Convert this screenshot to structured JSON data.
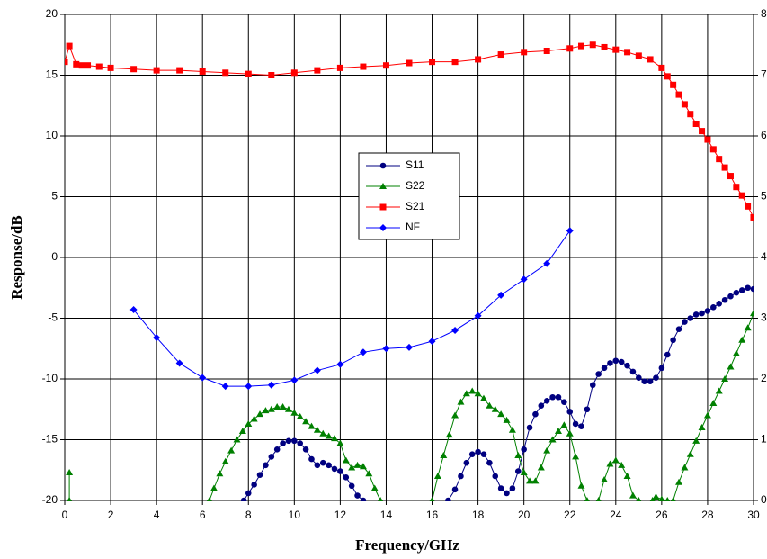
{
  "chart_data": {
    "type": "line",
    "x_label": "Frequency/GHz",
    "y_label": "Response/dB",
    "xlim": [
      0,
      30
    ],
    "xticks": [
      0,
      2,
      4,
      6,
      8,
      10,
      12,
      14,
      16,
      18,
      20,
      22,
      24,
      26,
      28,
      30
    ],
    "ylim": [
      -20,
      20
    ],
    "yticks": [
      -20,
      -15,
      -10,
      -5,
      0,
      5,
      10,
      15,
      20
    ],
    "y2lim": [
      0,
      8
    ],
    "y2ticks": [
      0,
      1,
      2,
      3,
      4,
      5,
      6,
      7,
      8
    ],
    "grid": true,
    "legend": "center",
    "series": [
      {
        "name": "S11",
        "color": "#000080",
        "marker": "circle",
        "x": [
          7.8,
          8,
          8.25,
          8.5,
          8.75,
          9,
          9.25,
          9.5,
          9.75,
          10,
          10.25,
          10.5,
          10.75,
          11,
          11.25,
          11.5,
          11.75,
          12,
          12.25,
          12.5,
          12.75,
          13,
          15,
          16.7,
          17,
          17.25,
          17.5,
          17.75,
          18,
          18.25,
          18.5,
          18.75,
          19,
          19.25,
          19.5,
          19.75,
          20,
          20.25,
          20.5,
          20.75,
          21,
          21.25,
          21.5,
          21.75,
          22,
          22.25,
          22.5,
          22.75,
          23,
          23.25,
          23.5,
          23.75,
          24,
          24.25,
          24.5,
          24.75,
          25,
          25.25,
          25.5,
          25.75,
          26,
          26.25,
          26.5,
          26.75,
          27,
          27.25,
          27.5,
          27.75,
          28,
          28.25,
          28.5,
          28.75,
          29,
          29.25,
          29.5,
          29.75,
          30
        ],
        "values": [
          -20,
          -19.4,
          -18.7,
          -17.9,
          -17.1,
          -16.4,
          -15.8,
          -15.3,
          -15.1,
          -15.1,
          -15.3,
          -15.8,
          -16.6,
          -17.1,
          -16.9,
          -17.1,
          -17.4,
          -17.6,
          -18.1,
          -18.8,
          -19.6,
          -20,
          null,
          -20,
          -19.1,
          -18,
          -16.9,
          -16.2,
          -16,
          -16.2,
          -16.9,
          -18,
          -19,
          -19.4,
          -19,
          -17.6,
          -15.8,
          -14,
          -12.9,
          -12.2,
          -11.8,
          -11.5,
          -11.5,
          -11.9,
          -12.7,
          -13.7,
          -13.9,
          -12.5,
          -10.5,
          -9.6,
          -9.1,
          -8.7,
          -8.5,
          -8.6,
          -8.9,
          -9.4,
          -9.9,
          -10.2,
          -10.2,
          -9.9,
          -9.1,
          -8,
          -6.8,
          -5.9,
          -5.3,
          -5,
          -4.7,
          -4.6,
          -4.4,
          -4.1,
          -3.8,
          -3.5,
          -3.2,
          -2.9,
          -2.7,
          -2.5,
          -2.6
        ]
      },
      {
        "name": "S22",
        "color": "#008000",
        "marker": "triangle",
        "x": [
          0.2,
          0.2,
          3,
          6.3,
          6.5,
          6.75,
          7,
          7.25,
          7.5,
          7.75,
          8,
          8.25,
          8.5,
          8.75,
          9,
          9.25,
          9.5,
          9.75,
          10,
          10.25,
          10.5,
          10.75,
          11,
          11.25,
          11.5,
          11.75,
          12,
          12.25,
          12.5,
          12.75,
          13,
          13.25,
          13.5,
          13.75,
          15,
          16,
          16.25,
          16.5,
          16.75,
          17,
          17.25,
          17.5,
          17.75,
          18,
          18.25,
          18.5,
          18.75,
          19,
          19.25,
          19.5,
          19.75,
          20,
          20.25,
          20.5,
          20.75,
          21,
          21.25,
          21.5,
          21.75,
          22,
          22.25,
          22.5,
          22.75,
          23,
          23.25,
          23.5,
          23.75,
          24,
          24.25,
          24.5,
          24.75,
          25,
          25.3,
          25.6,
          25.75,
          26,
          26.25,
          26.4,
          26.5,
          26.75,
          27,
          27.25,
          27.5,
          27.75,
          28,
          28.25,
          28.5,
          28.75,
          29,
          29.25,
          29.5,
          29.75,
          30
        ],
        "values": [
          -17.7,
          -20,
          null,
          -20,
          -19,
          -17.8,
          -16.8,
          -15.9,
          -15,
          -14.3,
          -13.7,
          -13.3,
          -12.9,
          -12.6,
          -12.5,
          -12.3,
          -12.3,
          -12.5,
          -12.8,
          -13.1,
          -13.5,
          -13.9,
          -14.2,
          -14.5,
          -14.7,
          -14.9,
          -15.3,
          -16.7,
          -17.3,
          -17.1,
          -17.2,
          -17.8,
          -19,
          -20,
          null,
          -20,
          -18,
          -16.3,
          -14.6,
          -13,
          -11.9,
          -11.2,
          -11,
          -11.2,
          -11.6,
          -12.2,
          -12.5,
          -12.9,
          -13.4,
          -14.2,
          -16.3,
          -17.7,
          -18.4,
          -18.4,
          -17.3,
          -15.9,
          -15,
          -14.3,
          -13.8,
          -14.5,
          -16.4,
          -18.8,
          -20,
          null,
          -20,
          -18.3,
          -17,
          -16.7,
          -17.1,
          -18,
          -19.6,
          -20,
          null,
          -20,
          -19.7,
          -19.9,
          -20,
          null,
          -20,
          -18.5,
          -17.3,
          -16.2,
          -15.1,
          -14,
          -13,
          -12,
          -11,
          -10,
          -9,
          -7.9,
          -6.8,
          -5.8,
          -4.6
        ]
      },
      {
        "name": "S21",
        "color": "#ff0000",
        "marker": "square",
        "x": [
          0,
          0.2,
          0.5,
          0.75,
          1,
          1.5,
          2,
          3,
          4,
          5,
          6,
          7,
          8,
          9,
          10,
          11,
          12,
          13,
          14,
          15,
          16,
          17,
          18,
          19,
          20,
          21,
          22,
          22.5,
          23,
          23.5,
          24,
          24.5,
          25,
          25.5,
          26,
          26.25,
          26.5,
          26.75,
          27,
          27.25,
          27.5,
          27.75,
          28,
          28.25,
          28.5,
          28.75,
          29,
          29.25,
          29.5,
          29.75,
          30
        ],
        "values": [
          16.1,
          17.4,
          15.9,
          15.8,
          15.8,
          15.7,
          15.6,
          15.5,
          15.4,
          15.4,
          15.3,
          15.2,
          15.1,
          15,
          15.2,
          15.4,
          15.6,
          15.7,
          15.8,
          16,
          16.1,
          16.1,
          16.3,
          16.7,
          16.9,
          17,
          17.2,
          17.4,
          17.5,
          17.3,
          17.1,
          16.9,
          16.6,
          16.3,
          15.6,
          14.9,
          14.2,
          13.4,
          12.6,
          11.8,
          11,
          10.4,
          9.7,
          8.9,
          8.1,
          7.4,
          6.7,
          5.8,
          5.1,
          4.2,
          3.3
        ]
      },
      {
        "name": "NF",
        "color": "#0000ff",
        "marker": "diamond",
        "axis": "y2",
        "x": [
          3,
          4,
          5,
          6,
          7,
          8,
          9,
          10,
          11,
          12,
          13,
          14,
          15,
          16,
          17,
          18,
          19,
          20,
          21,
          22
        ],
        "values": [
          3.14,
          2.68,
          2.26,
          2.02,
          1.88,
          1.88,
          1.9,
          1.98,
          2.14,
          2.24,
          2.44,
          2.5,
          2.52,
          2.62,
          2.8,
          3.04,
          3.38,
          3.64,
          3.9,
          4.44
        ]
      }
    ]
  }
}
